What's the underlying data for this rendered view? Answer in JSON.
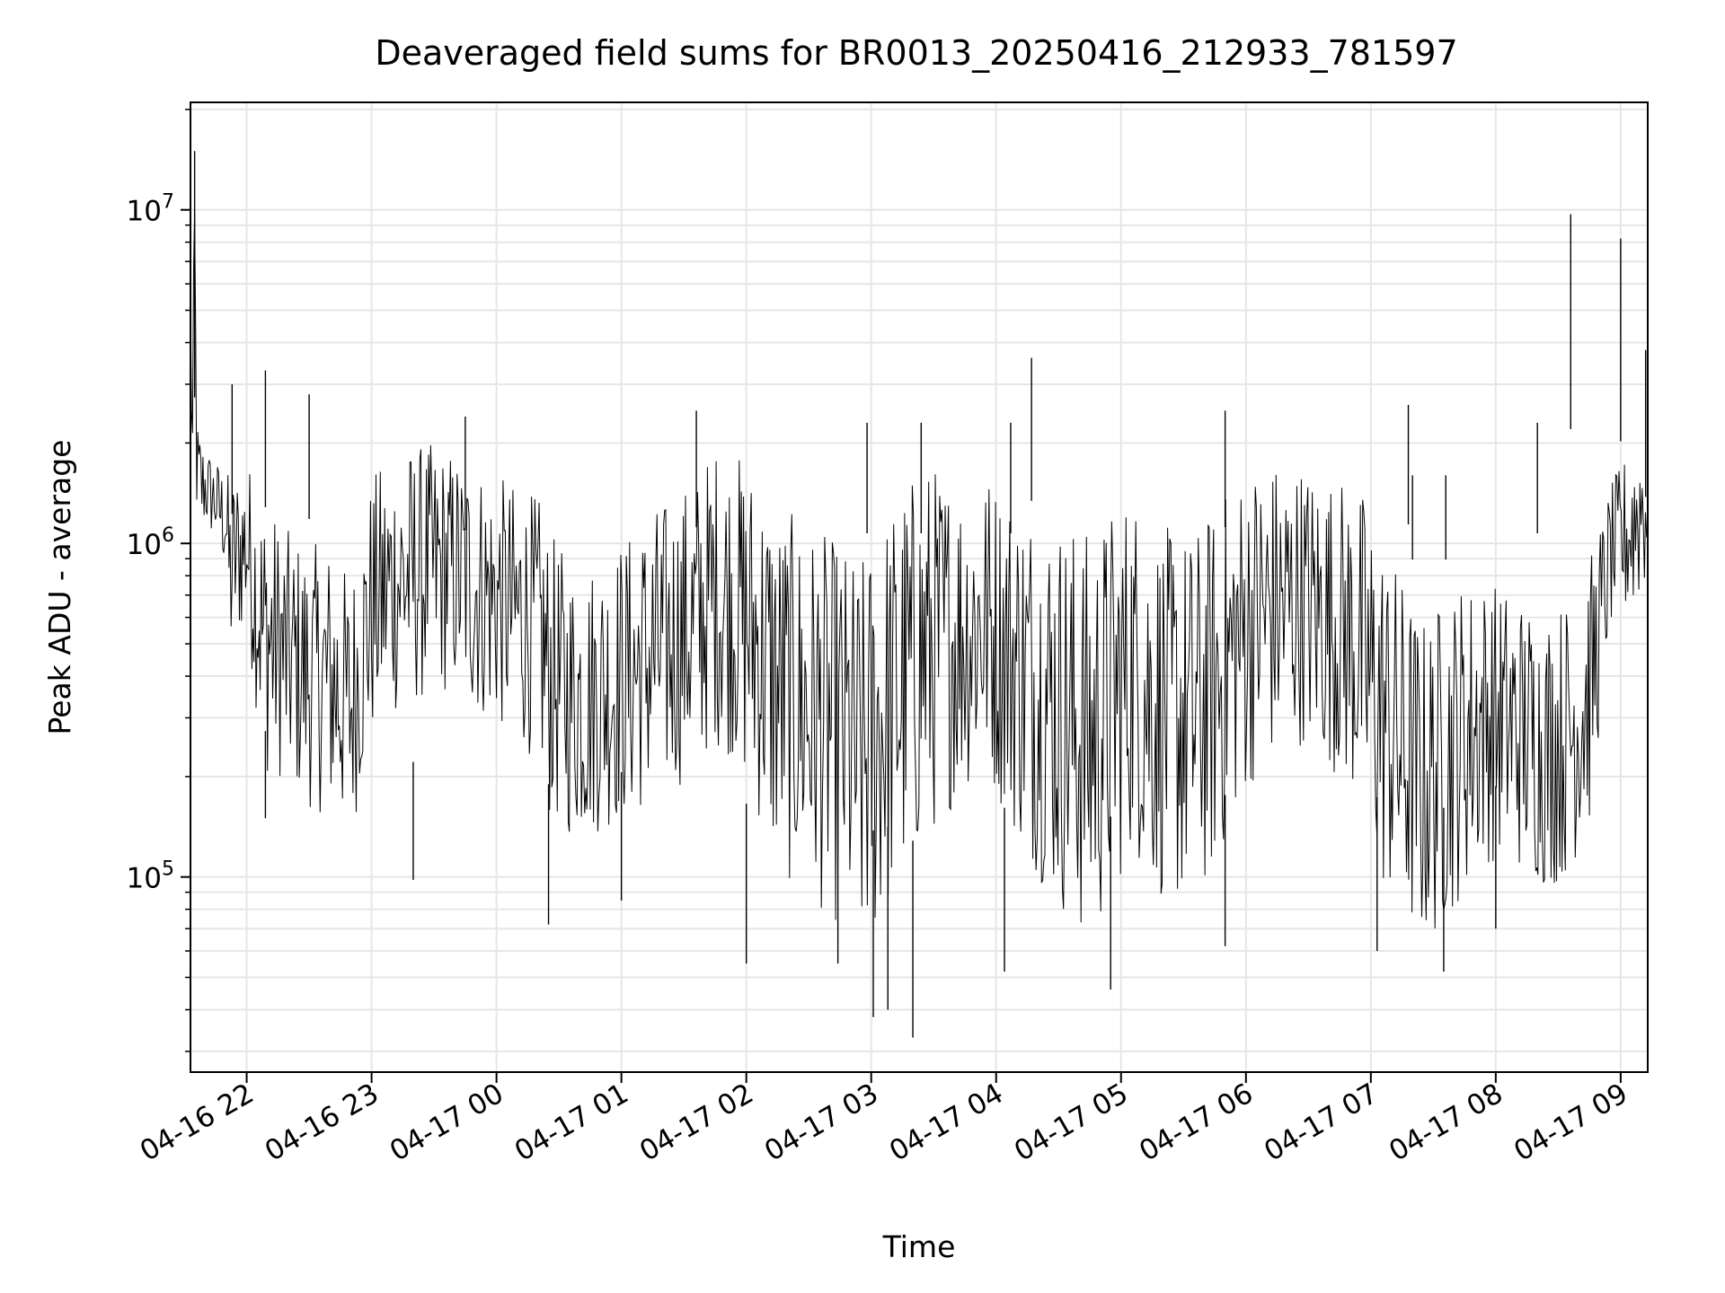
{
  "chart_data": {
    "type": "line",
    "title": "Deaveraged field sums for BR0013_20250416_212933_781597",
    "xlabel": "Time",
    "ylabel": "Peak ADU - average",
    "yscale": "log",
    "ylim": [
      26000,
      21000000
    ],
    "xlim": [
      "2025-04-16 21:33",
      "2025-04-17 09:13"
    ],
    "grid": true,
    "line_color": "#000000",
    "x_ticks": [
      {
        "t": "2025-04-16 22:00",
        "label": "04-16 22"
      },
      {
        "t": "2025-04-16 23:00",
        "label": "04-16 23"
      },
      {
        "t": "2025-04-17 00:00",
        "label": "04-17 00"
      },
      {
        "t": "2025-04-17 01:00",
        "label": "04-17 01"
      },
      {
        "t": "2025-04-17 02:00",
        "label": "04-17 02"
      },
      {
        "t": "2025-04-17 03:00",
        "label": "04-17 03"
      },
      {
        "t": "2025-04-17 04:00",
        "label": "04-17 04"
      },
      {
        "t": "2025-04-17 05:00",
        "label": "04-17 05"
      },
      {
        "t": "2025-04-17 06:00",
        "label": "04-17 06"
      },
      {
        "t": "2025-04-17 07:00",
        "label": "04-17 07"
      },
      {
        "t": "2025-04-17 08:00",
        "label": "04-17 08"
      },
      {
        "t": "2025-04-17 09:00",
        "label": "04-17 09"
      }
    ],
    "y_ticks": [
      {
        "value": 100000,
        "base": "10",
        "exp": "5"
      },
      {
        "value": 1000000,
        "base": "10",
        "exp": "6"
      },
      {
        "value": 10000000,
        "base": "10",
        "exp": "7"
      }
    ],
    "series": [
      {
        "x": [
          "2025-04-16 21:33",
          "2025-04-16 21:34",
          "2025-04-16 21:35",
          "2025-04-16 21:36",
          "2025-04-16 21:38",
          "2025-04-16 21:40",
          "2025-04-16 21:45",
          "2025-04-16 21:50",
          "2025-04-16 21:52",
          "2025-04-16 21:55",
          "2025-04-16 22:00",
          "2025-04-16 22:05",
          "2025-04-16 22:08",
          "2025-04-16 22:15",
          "2025-04-16 22:20",
          "2025-04-16 22:30",
          "2025-04-16 22:40",
          "2025-04-16 22:45",
          "2025-04-16 22:50",
          "2025-04-16 23:00",
          "2025-04-16 23:10",
          "2025-04-16 23:20",
          "2025-04-16 23:30",
          "2025-04-16 23:40",
          "2025-04-16 23:50",
          "2025-04-17 00:00",
          "2025-04-17 00:10",
          "2025-04-17 00:20",
          "2025-04-17 00:25",
          "2025-04-17 00:35",
          "2025-04-17 00:45",
          "2025-04-17 00:55",
          "2025-04-17 01:05",
          "2025-04-17 01:15",
          "2025-04-17 01:25",
          "2025-04-17 01:35",
          "2025-04-17 01:45",
          "2025-04-17 01:55",
          "2025-04-17 02:05",
          "2025-04-17 02:15",
          "2025-04-17 02:25",
          "2025-04-17 02:35",
          "2025-04-17 02:45",
          "2025-04-17 02:55",
          "2025-04-17 03:05",
          "2025-04-17 03:15",
          "2025-04-17 03:25",
          "2025-04-17 03:35",
          "2025-04-17 03:45",
          "2025-04-17 03:55",
          "2025-04-17 04:05",
          "2025-04-17 04:15",
          "2025-04-17 04:25",
          "2025-04-17 04:35",
          "2025-04-17 04:45",
          "2025-04-17 04:55",
          "2025-04-17 05:05",
          "2025-04-17 05:15",
          "2025-04-17 05:25",
          "2025-04-17 05:35",
          "2025-04-17 05:45",
          "2025-04-17 05:55",
          "2025-04-17 06:05",
          "2025-04-17 06:15",
          "2025-04-17 06:25",
          "2025-04-17 06:35",
          "2025-04-17 06:45",
          "2025-04-17 06:55",
          "2025-04-17 07:05",
          "2025-04-17 07:15",
          "2025-04-17 07:25",
          "2025-04-17 07:35",
          "2025-04-17 07:45",
          "2025-04-17 07:55",
          "2025-04-17 08:05",
          "2025-04-17 08:15",
          "2025-04-17 08:25",
          "2025-04-17 08:35",
          "2025-04-17 08:45",
          "2025-04-17 08:55",
          "2025-04-17 09:05",
          "2025-04-17 09:13"
        ],
        "y": [
          5000000,
          2000000,
          9000000,
          1800000,
          1500000,
          1600000,
          1300000,
          1200000,
          900000,
          1000000,
          1100000,
          700000,
          500000,
          450000,
          400000,
          350000,
          320000,
          300000,
          280000,
          700000,
          800000,
          900000,
          1000000,
          1000000,
          900000,
          800000,
          700000,
          600000,
          400000,
          350000,
          350000,
          380000,
          420000,
          450000,
          500000,
          550000,
          650000,
          600000,
          600000,
          400000,
          350000,
          300000,
          250000,
          220000,
          300000,
          350000,
          450000,
          500000,
          550000,
          600000,
          450000,
          400000,
          350000,
          320000,
          300000,
          350000,
          450000,
          350000,
          300000,
          280000,
          350000,
          500000,
          600000,
          650000,
          700000,
          650000,
          600000,
          500000,
          300000,
          200000,
          150000,
          180000,
          200000,
          220000,
          220000,
          200000,
          180000,
          200000,
          250000,
          800000,
          900000,
          1000000
        ],
        "lo": [
          3000000,
          1200000,
          4000000,
          1200000,
          1000000,
          1100000,
          1000000,
          800000,
          400000,
          500000,
          550000,
          300000,
          200000,
          200000,
          180000,
          160000,
          150000,
          140000,
          130000,
          250000,
          300000,
          320000,
          350000,
          350000,
          300000,
          280000,
          250000,
          220000,
          150000,
          130000,
          130000,
          140000,
          150000,
          160000,
          180000,
          200000,
          250000,
          220000,
          150000,
          100000,
          90000,
          80000,
          70000,
          50000,
          70000,
          90000,
          120000,
          150000,
          180000,
          200000,
          150000,
          110000,
          90000,
          70000,
          60000,
          80000,
          120000,
          90000,
          80000,
          80000,
          100000,
          150000,
          200000,
          220000,
          250000,
          220000,
          200000,
          150000,
          90000,
          70000,
          60000,
          70000,
          90000,
          110000,
          110000,
          100000,
          90000,
          100000,
          140000,
          550000,
          600000,
          700000
        ],
        "hi": [
          7000000,
          3000000,
          15000000,
          2400000,
          2200000,
          2000000,
          1800000,
          1700000,
          1600000,
          1700000,
          1800000,
          1600000,
          1400000,
          1200000,
          1100000,
          1000000,
          1000000,
          900000,
          800000,
          1600000,
          1900000,
          2000000,
          2000000,
          1900000,
          1800000,
          1600000,
          1500000,
          1400000,
          1100000,
          900000,
          900000,
          1000000,
          1100000,
          1300000,
          1400000,
          1600000,
          2000000,
          1900000,
          1700000,
          1300000,
          1200000,
          1100000,
          1000000,
          900000,
          1200000,
          1500000,
          1800000,
          1700000,
          1600000,
          1700000,
          1500000,
          1400000,
          1300000,
          1200000,
          1100000,
          1300000,
          1500000,
          1200000,
          1100000,
          1100000,
          1300000,
          1600000,
          1800000,
          1800000,
          1800000,
          1700000,
          1600000,
          1500000,
          1100000,
          800000,
          600000,
          700000,
          800000,
          800000,
          750000,
          700000,
          650000,
          700000,
          900000,
          1500000,
          2000000,
          3000000
        ]
      }
    ],
    "spikes_up": [
      {
        "x": "2025-04-16 21:35",
        "y": 15000000
      },
      {
        "x": "2025-04-16 21:53",
        "y": 3000000
      },
      {
        "x": "2025-04-16 22:09",
        "y": 3300000
      },
      {
        "x": "2025-04-16 22:30",
        "y": 2800000
      },
      {
        "x": "2025-04-16 23:45",
        "y": 2400000
      },
      {
        "x": "2025-04-17 01:36",
        "y": 2500000
      },
      {
        "x": "2025-04-17 02:58",
        "y": 2300000
      },
      {
        "x": "2025-04-17 03:24",
        "y": 2300000
      },
      {
        "x": "2025-04-17 04:07",
        "y": 2300000
      },
      {
        "x": "2025-04-17 04:17",
        "y": 3600000
      },
      {
        "x": "2025-04-17 05:50",
        "y": 2500000
      },
      {
        "x": "2025-04-17 07:18",
        "y": 2600000
      },
      {
        "x": "2025-04-17 07:20",
        "y": 1600000
      },
      {
        "x": "2025-04-17 07:36",
        "y": 1600000
      },
      {
        "x": "2025-04-17 08:20",
        "y": 2300000
      },
      {
        "x": "2025-04-17 08:36",
        "y": 9700000
      },
      {
        "x": "2025-04-17 09:00",
        "y": 8200000
      },
      {
        "x": "2025-04-17 09:12",
        "y": 3800000
      }
    ],
    "spikes_down": [
      {
        "x": "2025-04-16 22:09",
        "y": 150000
      },
      {
        "x": "2025-04-16 23:20",
        "y": 98000
      },
      {
        "x": "2025-04-17 00:25",
        "y": 72000
      },
      {
        "x": "2025-04-17 01:00",
        "y": 85000
      },
      {
        "x": "2025-04-17 02:00",
        "y": 55000
      },
      {
        "x": "2025-04-17 02:44",
        "y": 55000
      },
      {
        "x": "2025-04-17 03:01",
        "y": 38000
      },
      {
        "x": "2025-04-17 03:08",
        "y": 40000
      },
      {
        "x": "2025-04-17 03:20",
        "y": 33000
      },
      {
        "x": "2025-04-17 04:04",
        "y": 52000
      },
      {
        "x": "2025-04-17 04:55",
        "y": 46000
      },
      {
        "x": "2025-04-17 05:50",
        "y": 62000
      },
      {
        "x": "2025-04-17 07:03",
        "y": 60000
      },
      {
        "x": "2025-04-17 07:35",
        "y": 52000
      },
      {
        "x": "2025-04-17 08:00",
        "y": 70000
      }
    ]
  }
}
